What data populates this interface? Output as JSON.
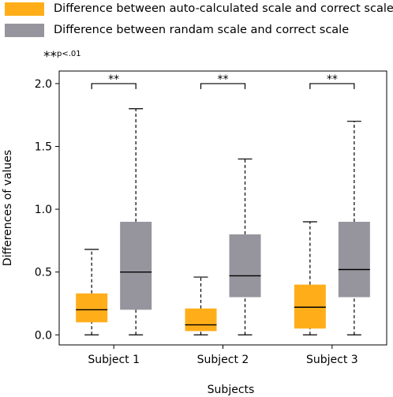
{
  "legend": {
    "items": [
      {
        "label": "Difference between auto-calculated scale and correct scale",
        "color": "#FFAE1A"
      },
      {
        "label": "Difference between randam scale and correct scale",
        "color": "#96959D"
      }
    ]
  },
  "significance_note": {
    "stars": "**",
    "text": "p<.01"
  },
  "chart_data": {
    "type": "box",
    "xlabel": "Subjects",
    "ylabel": "Differences of values",
    "ylim": [
      -0.08,
      2.1
    ],
    "yticks": [
      "0.0",
      "0.5",
      "1.0",
      "1.5",
      "2.0"
    ],
    "categories": [
      "Subject 1",
      "Subject 2",
      "Subject 3"
    ],
    "series": [
      {
        "name": "Difference between auto-calculated scale and correct scale",
        "color": "#FFAE1A",
        "boxes": [
          {
            "whislo": 0.0,
            "q1": 0.1,
            "med": 0.2,
            "q3": 0.33,
            "whishi": 0.68
          },
          {
            "whislo": 0.0,
            "q1": 0.03,
            "med": 0.08,
            "q3": 0.21,
            "whishi": 0.46
          },
          {
            "whislo": 0.0,
            "q1": 0.05,
            "med": 0.22,
            "q3": 0.4,
            "whishi": 0.9
          }
        ]
      },
      {
        "name": "Difference between randam scale and correct scale",
        "color": "#96959D",
        "boxes": [
          {
            "whislo": 0.0,
            "q1": 0.2,
            "med": 0.5,
            "q3": 0.9,
            "whishi": 1.8
          },
          {
            "whislo": 0.0,
            "q1": 0.3,
            "med": 0.47,
            "q3": 0.8,
            "whishi": 1.4
          },
          {
            "whislo": 0.0,
            "q1": 0.3,
            "med": 0.52,
            "q3": 0.9,
            "whishi": 1.7
          }
        ]
      }
    ],
    "significance": [
      {
        "category": "Subject 1",
        "label": "**",
        "y": 2.0
      },
      {
        "category": "Subject 2",
        "label": "**",
        "y": 2.0
      },
      {
        "category": "Subject 3",
        "label": "**",
        "y": 2.0
      }
    ]
  }
}
